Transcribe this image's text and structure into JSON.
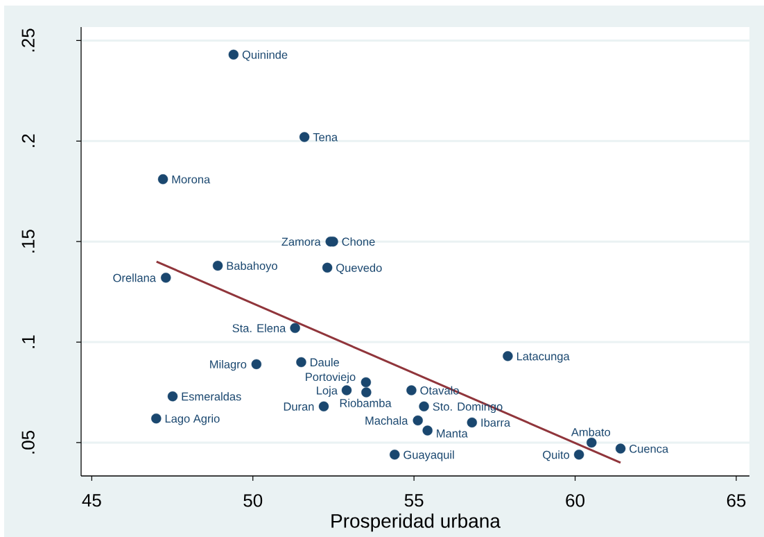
{
  "chart_data": {
    "type": "scatter",
    "xlabel": "Prosperidad urbana",
    "xlim": [
      44.67,
      65.41
    ],
    "ylim": [
      0.0334,
      0.2567
    ],
    "xticks": [
      45,
      50,
      55,
      60,
      65
    ],
    "yticks": [
      {
        "value": 0.05,
        "label": ".05"
      },
      {
        "value": 0.1,
        "label": ".1"
      },
      {
        "value": 0.15,
        "label": ".15"
      },
      {
        "value": 0.2,
        "label": ".2"
      },
      {
        "value": 0.25,
        "label": ".25"
      }
    ],
    "grid": "y",
    "series": [
      {
        "color": "#1a476f",
        "marker": "circle",
        "x": [
          49.4,
          51.6,
          47.21,
          52.41,
          52.49,
          48.91,
          52.31,
          47.3,
          51.31,
          57.91,
          51.5,
          50.11,
          53.51,
          52.91,
          53.52,
          54.92,
          47.51,
          52.2,
          55.31,
          47.0,
          55.12,
          56.8,
          55.42,
          60.51,
          61.41,
          60.12,
          54.4
        ],
        "values": [
          0.243,
          0.202,
          0.181,
          0.15,
          0.15,
          0.138,
          0.137,
          0.132,
          0.107,
          0.093,
          0.09,
          0.089,
          0.08,
          0.076,
          0.075,
          0.076,
          0.073,
          0.068,
          0.068,
          0.062,
          0.061,
          0.06,
          0.056,
          0.05,
          0.047,
          0.044,
          0.044
        ]
      },
      {
        "type": "line",
        "color": "#90353b",
        "line_style": "solid",
        "x": [
          47.01,
          61.41
        ],
        "values": [
          0.14,
          0.04
        ]
      }
    ],
    "annotations": [
      {
        "text": "Quininde",
        "x": 49.4,
        "y": 0.243
      },
      {
        "text": "Tena",
        "x": 51.6,
        "y": 0.202
      },
      {
        "text": "Morona",
        "x": 47.21,
        "y": 0.181
      },
      {
        "text": "Zamora",
        "x": 52.41,
        "y": 0.15
      },
      {
        "text": "Chone",
        "x": 52.49,
        "y": 0.15
      },
      {
        "text": "Babahoyo",
        "x": 48.91,
        "y": 0.138
      },
      {
        "text": "Quevedo",
        "x": 52.31,
        "y": 0.137
      },
      {
        "text": "Orellana",
        "x": 47.3,
        "y": 0.132
      },
      {
        "text": "Sta. Elena",
        "x": 51.31,
        "y": 0.107
      },
      {
        "text": "Latacunga",
        "x": 57.91,
        "y": 0.093
      },
      {
        "text": "Daule",
        "x": 51.5,
        "y": 0.09
      },
      {
        "text": "Milagro",
        "x": 50.11,
        "y": 0.089
      },
      {
        "text": "Portoviejo",
        "x": 53.51,
        "y": 0.08
      },
      {
        "text": "Loja",
        "x": 52.91,
        "y": 0.076
      },
      {
        "text": "Riobamba",
        "x": 53.52,
        "y": 0.075
      },
      {
        "text": "Otavalo",
        "x": 54.92,
        "y": 0.076
      },
      {
        "text": "Esmeraldas",
        "x": 47.51,
        "y": 0.073
      },
      {
        "text": "Duran",
        "x": 52.2,
        "y": 0.068
      },
      {
        "text": "Sto. Domingo",
        "x": 55.31,
        "y": 0.068
      },
      {
        "text": "Lago Agrio",
        "x": 47.0,
        "y": 0.062
      },
      {
        "text": "Machala",
        "x": 55.12,
        "y": 0.061
      },
      {
        "text": "Ibarra",
        "x": 56.8,
        "y": 0.06
      },
      {
        "text": "Manta",
        "x": 55.42,
        "y": 0.056
      },
      {
        "text": "Ambato",
        "x": 60.51,
        "y": 0.05
      },
      {
        "text": "Cuenca",
        "x": 61.41,
        "y": 0.047
      },
      {
        "text": "Quito",
        "x": 60.12,
        "y": 0.044
      },
      {
        "text": "Guayaquil",
        "x": 54.4,
        "y": 0.044
      }
    ]
  }
}
